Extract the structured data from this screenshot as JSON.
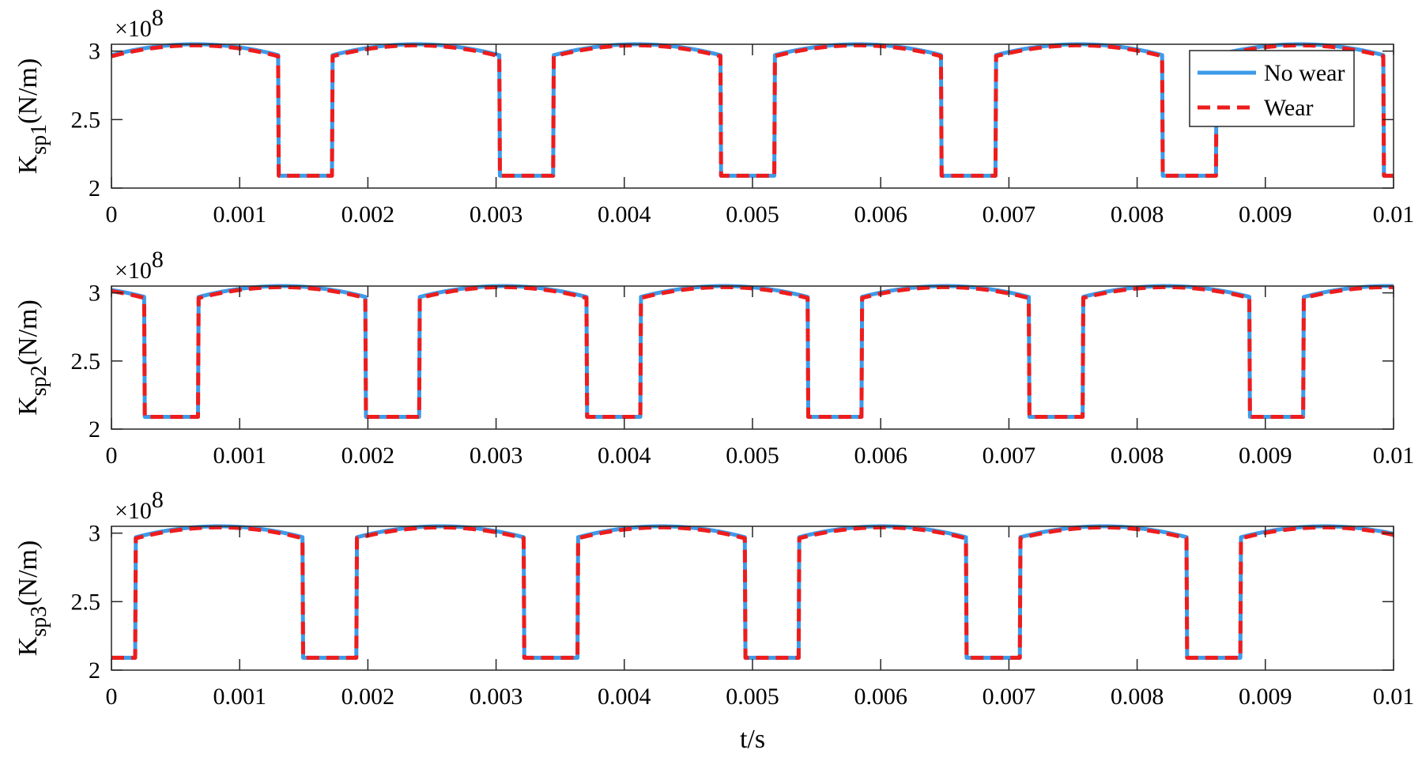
{
  "chart_data": [
    {
      "type": "line",
      "ylabel": "K",
      "ylabel_sub": "sp1",
      "ylabel_unit": "(N/m)",
      "y_multiplier_base": "×10",
      "y_multiplier_exp": "8",
      "xlabel": "",
      "xlim": [
        0,
        0.01
      ],
      "ylim": [
        2.0,
        3.05
      ],
      "x_ticks": [
        "0",
        "0.001",
        "0.002",
        "0.003",
        "0.004",
        "0.005",
        "0.006",
        "0.007",
        "0.008",
        "0.009",
        "0.01"
      ],
      "y_ticks": [
        "2",
        "2.5",
        "3"
      ],
      "period": 0.001724,
      "phase": 0.0,
      "low_start": 0.001303,
      "low_end": 0.001724,
      "low_value": 2.09,
      "high_peak": 3.05,
      "high_edge": 2.97,
      "wear_offset": 0.008,
      "series": [
        {
          "name": "No wear",
          "color": "#3d9be9",
          "style": "solid"
        },
        {
          "name": "Wear",
          "color": "#ee1c1c",
          "style": "dashed"
        }
      ],
      "legend": {
        "position": "top-right",
        "entries": [
          "No wear",
          "Wear"
        ]
      },
      "grid": false
    },
    {
      "type": "line",
      "ylabel": "K",
      "ylabel_sub": "sp2",
      "ylabel_unit": "(N/m)",
      "y_multiplier_base": "×10",
      "y_multiplier_exp": "8",
      "xlabel": "",
      "xlim": [
        0,
        0.01
      ],
      "ylim": [
        2.0,
        3.05
      ],
      "x_ticks": [
        "0",
        "0.001",
        "0.002",
        "0.003",
        "0.004",
        "0.005",
        "0.006",
        "0.007",
        "0.008",
        "0.009",
        "0.01"
      ],
      "y_ticks": [
        "2",
        "2.5",
        "3"
      ],
      "period": 0.001724,
      "phase": 0.001044,
      "low_start": 0.001303,
      "low_end": 0.001724,
      "low_value": 2.09,
      "high_peak": 3.05,
      "high_edge": 2.97,
      "wear_offset": 0.008,
      "series": [
        {
          "name": "No wear",
          "color": "#3d9be9",
          "style": "solid"
        },
        {
          "name": "Wear",
          "color": "#ee1c1c",
          "style": "dashed"
        }
      ],
      "grid": false
    },
    {
      "type": "line",
      "ylabel": "K",
      "ylabel_sub": "sp3",
      "ylabel_unit": "(N/m)",
      "y_multiplier_base": "×10",
      "y_multiplier_exp": "8",
      "xlabel": "t/s",
      "xlim": [
        0,
        0.01
      ],
      "ylim": [
        2.0,
        3.05
      ],
      "x_ticks": [
        "0",
        "0.001",
        "0.002",
        "0.003",
        "0.004",
        "0.005",
        "0.006",
        "0.007",
        "0.008",
        "0.009",
        "0.01"
      ],
      "y_ticks": [
        "2",
        "2.5",
        "3"
      ],
      "period": 0.001724,
      "phase": 0.001534,
      "low_start": 0.001303,
      "low_end": 0.001724,
      "low_value": 2.09,
      "high_peak": 3.05,
      "high_edge": 2.97,
      "wear_offset": 0.008,
      "series": [
        {
          "name": "No wear",
          "color": "#3d9be9",
          "style": "solid"
        },
        {
          "name": "Wear",
          "color": "#ee1c1c",
          "style": "dashed"
        }
      ],
      "grid": false
    }
  ]
}
